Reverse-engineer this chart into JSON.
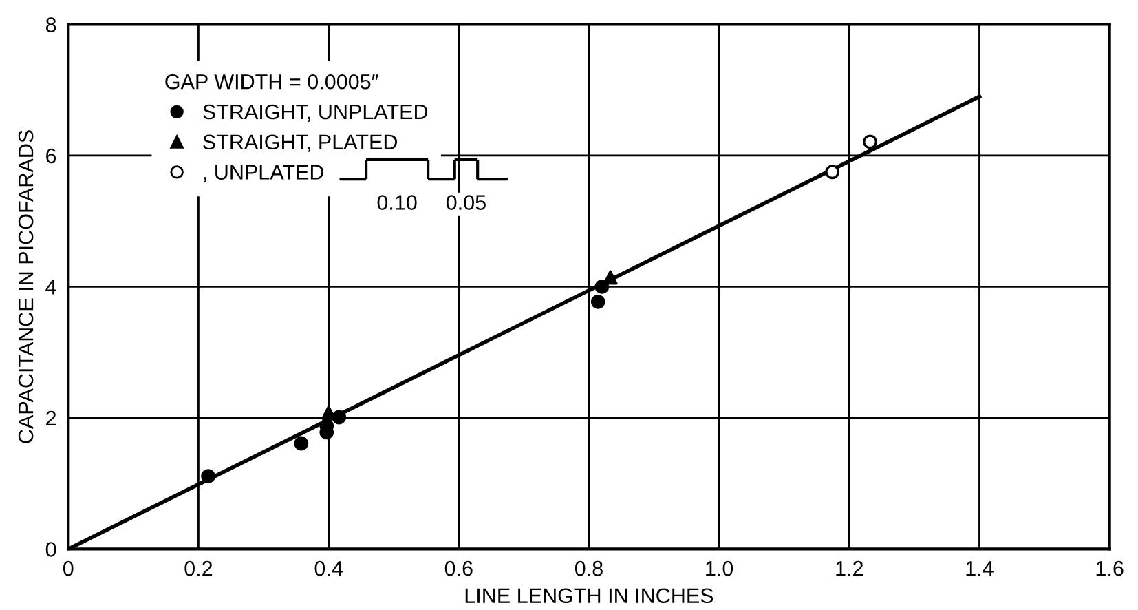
{
  "chart_data": {
    "type": "scatter",
    "xlabel": "LINE LENGTH IN INCHES",
    "ylabel": "CAPACITANCE IN PICOFARADS",
    "legend_title": "GAP WIDTH = 0.0005″",
    "xlim": [
      0,
      1.6
    ],
    "ylim": [
      0,
      8
    ],
    "xticks": [
      0,
      0.2,
      0.4,
      0.6,
      0.8,
      {
        "value": 1.0,
        "label": "1.0"
      },
      1.2,
      1.4,
      1.6
    ],
    "yticks": [
      0,
      2,
      4,
      6,
      8
    ],
    "grid": true,
    "legend": "top left",
    "annotations": [
      "0.10",
      "0.05"
    ],
    "series": [
      {
        "name": "STRAIGHT, UNPLATED",
        "color": "#000000",
        "marker": "circle",
        "x": [
          0.215,
          0.358,
          0.397,
          0.397,
          0.416,
          0.82,
          0.814
        ],
        "values": [
          1.11,
          1.61,
          1.88,
          1.78,
          2.01,
          4.0,
          3.77
        ]
      },
      {
        "name": "STRAIGHT, PLATED",
        "color": "#000000",
        "marker": "triangle",
        "x": [
          0.4,
          0.833
        ],
        "values": [
          2.08,
          4.14
        ]
      },
      {
        "name": ", UNPLATED",
        "color": "#000000",
        "marker": "circle",
        "x": [
          1.174,
          1.232
        ],
        "values": [
          5.75,
          6.21
        ]
      },
      {
        "type": "line",
        "color": "#000000",
        "marker": "none",
        "line_style": "solid",
        "x": [
          0,
          1.4
        ],
        "values": [
          0,
          6.9
        ]
      }
    ]
  }
}
